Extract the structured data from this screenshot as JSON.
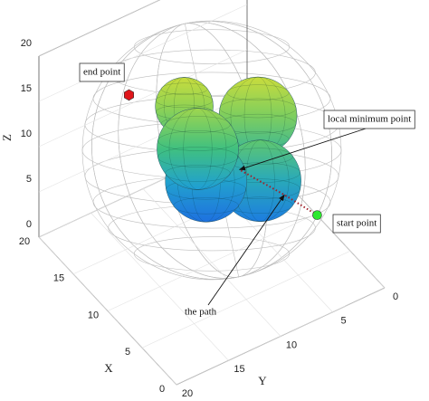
{
  "chart_data": {
    "type": "scatter3d",
    "xlabel": "X",
    "ylabel": "Y",
    "zlabel": "Z",
    "xlim": [
      0,
      20
    ],
    "ylim": [
      0,
      20
    ],
    "zlim": [
      0,
      20
    ],
    "xticks": [
      0,
      5,
      10,
      15,
      20
    ],
    "yticks": [
      0,
      5,
      10,
      15,
      20
    ],
    "zticks": [
      0,
      5,
      10,
      15,
      20
    ],
    "grid": true,
    "obstacles": [
      {
        "x": 14,
        "y": 10,
        "z": 14,
        "r": 3.2
      },
      {
        "x": 10.7,
        "y": 5.1,
        "z": 13,
        "r": 4.3
      },
      {
        "x": 9.6,
        "y": 5.6,
        "z": 7,
        "r": 4.5
      },
      {
        "x": 12.8,
        "y": 8.7,
        "z": 6,
        "r": 4.5
      },
      {
        "x": 12.8,
        "y": 9.5,
        "z": 10,
        "r": 4.5
      }
    ],
    "path": {
      "color": "#a0202a",
      "x": [
        3,
        5.5,
        9
      ],
      "y": [
        4.5,
        6,
        8
      ],
      "z": [
        8,
        9,
        10
      ]
    },
    "points": [
      {
        "name": "end point",
        "color": "#e0161b",
        "marker": "hexagon",
        "x": 17.5,
        "y": 13,
        "z": 14
      },
      {
        "name": "start point",
        "color": "#2ee82e",
        "marker": "circle",
        "x": 3,
        "y": 4.5,
        "z": 8
      }
    ],
    "annotations": [
      {
        "text": "local minimum point",
        "x": 9,
        "y": 8,
        "z": 10
      },
      {
        "text": "the path",
        "x": 5.5,
        "y": 6,
        "z": 9
      }
    ]
  }
}
